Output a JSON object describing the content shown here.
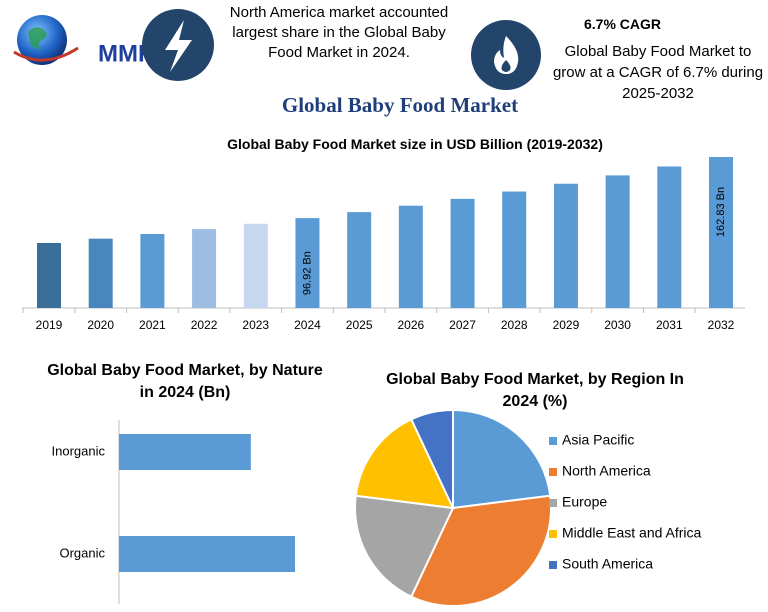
{
  "header": {
    "logo": "MMR",
    "highlight_text": "North America market accounted largest share in the Global Baby Food Market in 2024.",
    "cagr_title": "6.7% CAGR",
    "cagr_text": "Global Baby Food Market to grow at a CAGR of 6.7% during 2025-2032",
    "title": "Global Baby Food Market"
  },
  "chart_data": [
    {
      "type": "bar",
      "title": "Global Baby Food Market size in USD Billion (2019-2032)",
      "categories": [
        "2019",
        "2020",
        "2021",
        "2022",
        "2023",
        "2024",
        "2025",
        "2026",
        "2027",
        "2028",
        "2029",
        "2030",
        "2031",
        "2032"
      ],
      "values": [
        70.1,
        74.8,
        79.8,
        85.1,
        90.8,
        96.92,
        103.4,
        110.3,
        117.7,
        125.6,
        134.0,
        143.0,
        152.6,
        162.83
      ],
      "value_labels": [
        null,
        null,
        null,
        null,
        null,
        "96.92 Bn",
        null,
        null,
        null,
        null,
        null,
        null,
        null,
        "162.83 Bn"
      ],
      "colors": [
        "#3a6f9a",
        "#4a86be",
        "#5b9bd5",
        "#9dbde3",
        "#c5d8ef",
        "#5b9bd5",
        "#5b9bd5",
        "#5b9bd5",
        "#5b9bd5",
        "#5b9bd5",
        "#5b9bd5",
        "#5b9bd5",
        "#5b9bd5",
        "#5b9bd5"
      ]
    },
    {
      "type": "hbar",
      "title": "Global Baby Food Market, by Nature in 2024 (Bn)",
      "categories": [
        "Inorganic",
        "Organic"
      ],
      "values": [
        41.5,
        55.4
      ],
      "color": "#5b9bd5"
    },
    {
      "type": "pie",
      "title": "Global Baby Food Market, by Region In 2024 (%)",
      "categories": [
        "Asia Pacific",
        "North America",
        "Europe",
        "Middle East and Africa",
        "South America"
      ],
      "values": [
        23,
        34,
        20,
        16,
        7
      ],
      "colors": [
        "#5b9bd5",
        "#ed7d31",
        "#a5a5a5",
        "#ffc000",
        "#4472c4"
      ],
      "legend": "right"
    }
  ]
}
